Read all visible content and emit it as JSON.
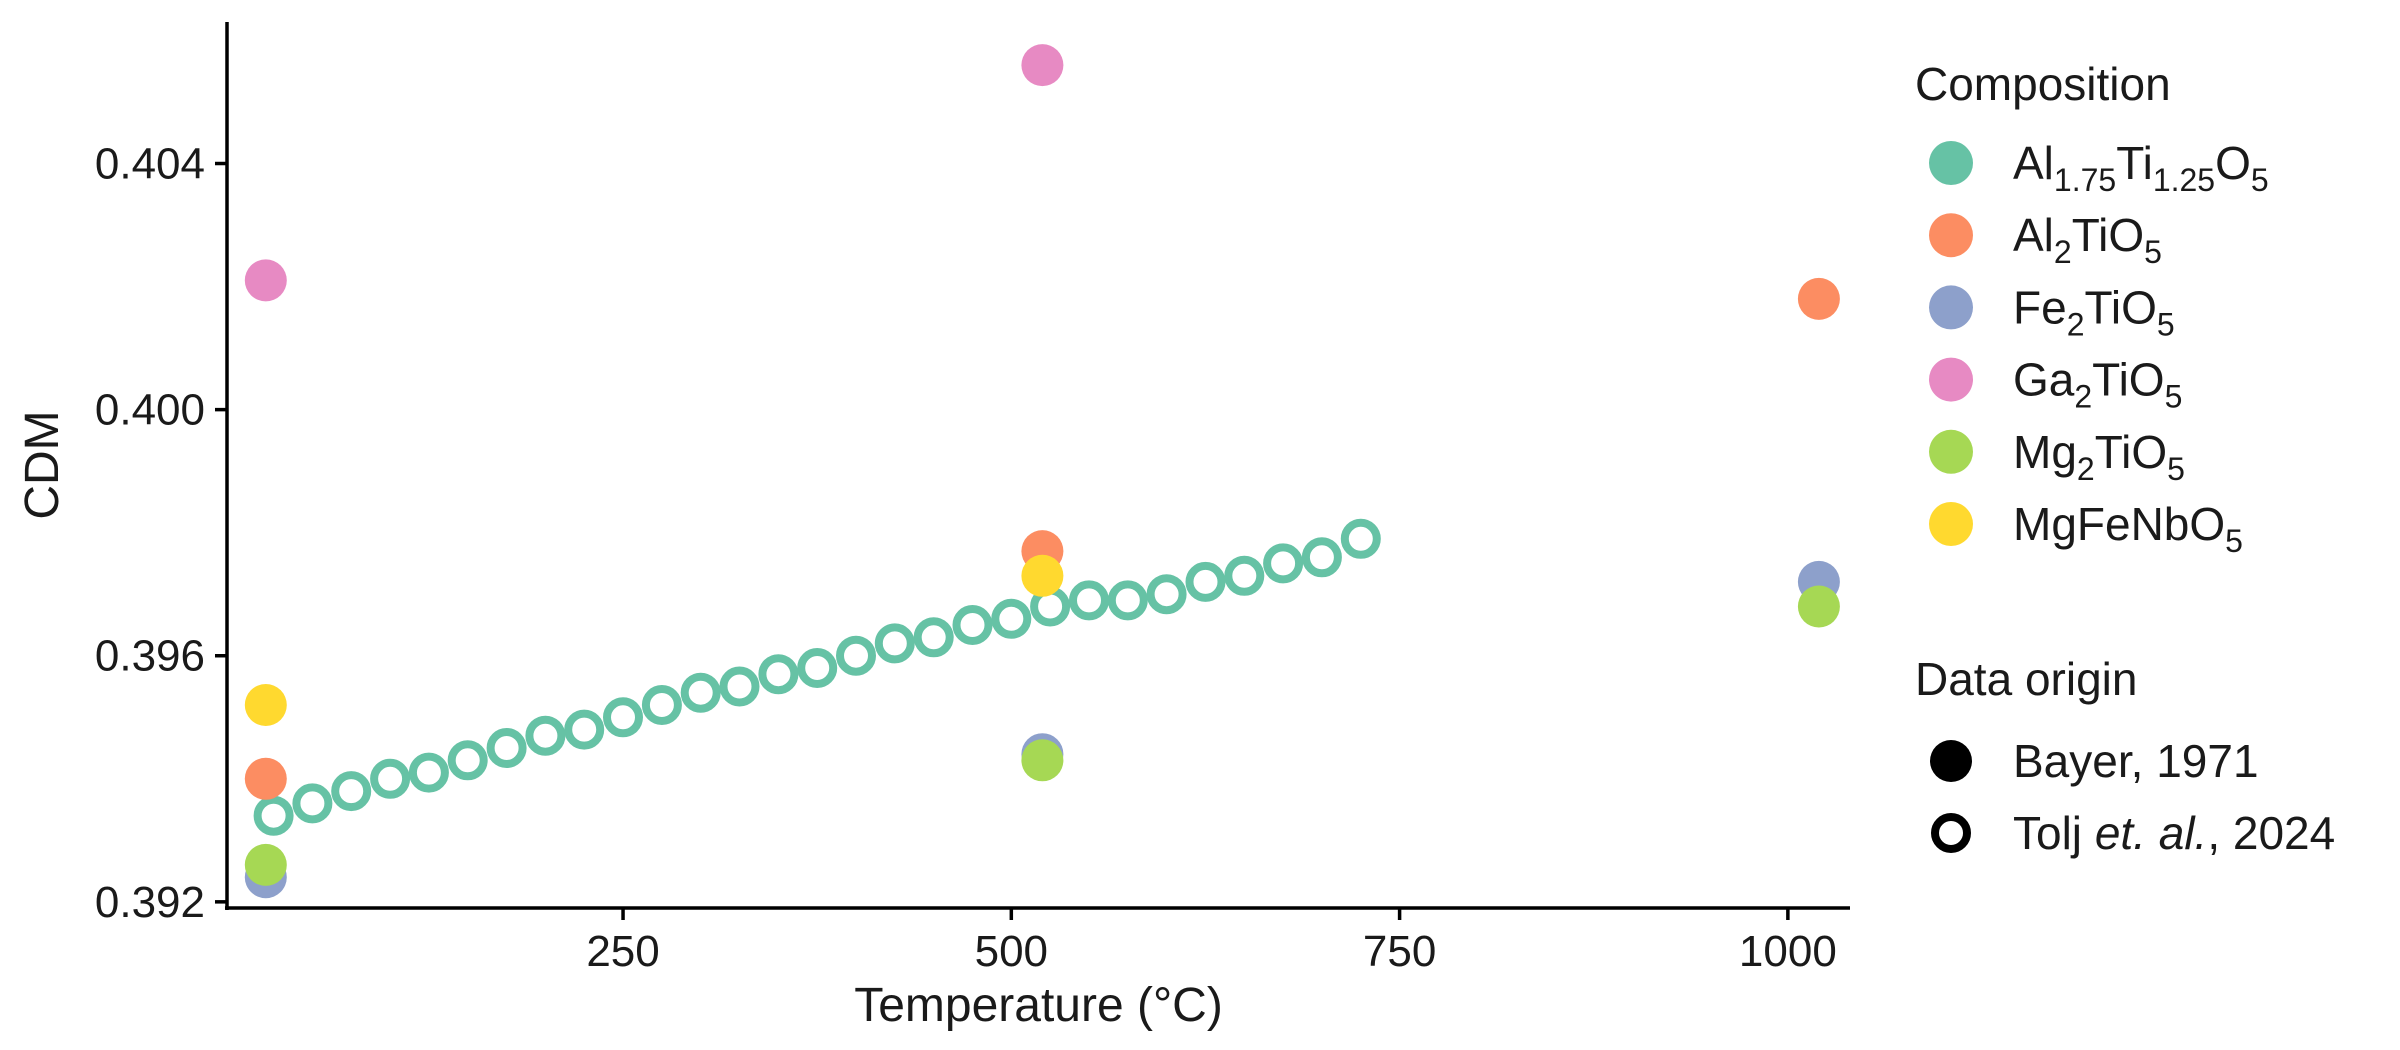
{
  "chart_data": {
    "type": "scatter",
    "xlabel": "Temperature (°C)",
    "ylabel": "CDM",
    "xlim": [
      -5,
      1040
    ],
    "ylim": [
      0.3919,
      0.4063
    ],
    "x_ticks": [
      250,
      500,
      750,
      1000
    ],
    "x_tick_labels": [
      "250",
      "500",
      "750",
      "1000"
    ],
    "y_ticks": [
      0.392,
      0.396,
      0.4,
      0.404
    ],
    "y_tick_labels": [
      "0.392",
      "0.396",
      "0.400",
      "0.404"
    ],
    "grid": false,
    "legend_position": "right",
    "legends": {
      "composition": {
        "title": "Composition",
        "entries": [
          {
            "base": "Al",
            "sub1": "1.75",
            "mid": "Ti",
            "sub2": "1.25",
            "end": "O",
            "sub3": "5",
            "color": "#66c2a5"
          },
          {
            "base": "Al",
            "sub1": "2",
            "mid": "TiO",
            "sub2": "5",
            "color": "#fc8d62"
          },
          {
            "base": "Fe",
            "sub1": "2",
            "mid": "TiO",
            "sub2": "5",
            "color": "#8da0cb"
          },
          {
            "base": "Ga",
            "sub1": "2",
            "mid": "TiO",
            "sub2": "5",
            "color": "#e78ac3"
          },
          {
            "base": "Mg",
            "sub1": "2",
            "mid": "TiO",
            "sub2": "5",
            "color": "#a6d854"
          },
          {
            "base": "MgFeNbO",
            "sub1": "5",
            "color": "#ffd92f"
          }
        ]
      },
      "origin": {
        "title": "Data origin",
        "entries": [
          {
            "label_plain": "Bayer, 1971",
            "filled": true
          },
          {
            "label_pre": "Tolj ",
            "label_italic": "et. al.",
            "label_post": ", 2024",
            "filled": false
          }
        ]
      }
    },
    "series": [
      {
        "composition": "Al1.75Ti1.25O5",
        "origin": "Tolj et. al., 2024",
        "color": "#66c2a5",
        "filled": false,
        "x": [
          25,
          50,
          75,
          100,
          125,
          150,
          175,
          200,
          225,
          250,
          275,
          300,
          325,
          350,
          375,
          400,
          425,
          450,
          475,
          500,
          525,
          550,
          575,
          600,
          625,
          650,
          675,
          700,
          725
        ],
        "y": [
          0.3934,
          0.3936,
          0.3938,
          0.394,
          0.3941,
          0.3943,
          0.3945,
          0.3947,
          0.3948,
          0.395,
          0.3952,
          0.3954,
          0.3955,
          0.3957,
          0.3958,
          0.396,
          0.3962,
          0.3963,
          0.3965,
          0.3966,
          0.3968,
          0.3969,
          0.3969,
          0.397,
          0.3972,
          0.3973,
          0.3975,
          0.3976,
          0.3979
        ]
      },
      {
        "composition": "Al2TiO5",
        "origin": "Bayer, 1971",
        "color": "#fc8d62",
        "filled": true,
        "x": [
          20,
          520,
          1020
        ],
        "y": [
          0.394,
          0.3977,
          0.4018
        ]
      },
      {
        "composition": "Fe2TiO5",
        "origin": "Bayer, 1971",
        "color": "#8da0cb",
        "filled": true,
        "x": [
          20,
          520,
          1020
        ],
        "y": [
          0.3924,
          0.3944,
          0.3972
        ]
      },
      {
        "composition": "Ga2TiO5",
        "origin": "Bayer, 1971",
        "color": "#e78ac3",
        "filled": true,
        "x": [
          20,
          520
        ],
        "y": [
          0.4021,
          0.4056
        ]
      },
      {
        "composition": "Mg2TiO5",
        "origin": "Bayer, 1971",
        "color": "#a6d854",
        "filled": true,
        "x": [
          20,
          520,
          1020
        ],
        "y": [
          0.3926,
          0.3943,
          0.3968
        ]
      },
      {
        "composition": "MgFeNbO5",
        "origin": "Bayer, 1971",
        "color": "#ffd92f",
        "filled": true,
        "x": [
          20,
          520
        ],
        "y": [
          0.3952,
          0.3973
        ]
      }
    ]
  }
}
